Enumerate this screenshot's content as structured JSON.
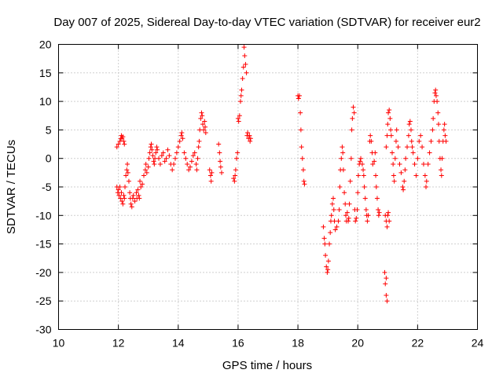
{
  "chart_data": {
    "type": "scatter",
    "title": "Day 007 of 2025, Sidereal Day-to-day VTEC variation (SDTVAR) for receiver eur2",
    "xlabel": "GPS time / hours",
    "ylabel": "SDTVAR / TECUs",
    "xlim": [
      10,
      24
    ],
    "ylim": [
      -30,
      20
    ],
    "xticks": [
      10,
      12,
      14,
      16,
      18,
      20,
      22,
      24
    ],
    "yticks": [
      -30,
      -25,
      -20,
      -15,
      -10,
      -5,
      0,
      5,
      10,
      15,
      20
    ],
    "grid": true,
    "marker": "+",
    "series": [
      {
        "name": "SDTVAR",
        "color": "#ff0000",
        "points": [
          [
            11.95,
            2.0
          ],
          [
            12.0,
            2.5
          ],
          [
            12.05,
            3.0
          ],
          [
            12.08,
            3.5
          ],
          [
            12.1,
            4.0
          ],
          [
            12.12,
            3.5
          ],
          [
            12.15,
            3.8
          ],
          [
            12.18,
            3.0
          ],
          [
            12.2,
            2.5
          ],
          [
            11.95,
            -5.0
          ],
          [
            11.98,
            -6.0
          ],
          [
            12.0,
            -5.5
          ],
          [
            12.02,
            -6.5
          ],
          [
            12.05,
            -5.0
          ],
          [
            12.07,
            -7.0
          ],
          [
            12.1,
            -6.0
          ],
          [
            12.12,
            -7.5
          ],
          [
            12.15,
            -8.0
          ],
          [
            12.18,
            -6.5
          ],
          [
            12.2,
            -7.0
          ],
          [
            12.22,
            -5.0
          ],
          [
            12.25,
            -3.0
          ],
          [
            12.28,
            -2.0
          ],
          [
            12.3,
            -1.0
          ],
          [
            12.32,
            -2.5
          ],
          [
            12.35,
            -4.0
          ],
          [
            12.38,
            -6.0
          ],
          [
            12.4,
            -7.0
          ],
          [
            12.42,
            -8.0
          ],
          [
            12.45,
            -8.5
          ],
          [
            12.48,
            -7.0
          ],
          [
            12.5,
            -6.5
          ],
          [
            12.55,
            -7.5
          ],
          [
            12.6,
            -6.0
          ],
          [
            12.62,
            -7.0
          ],
          [
            12.65,
            -5.5
          ],
          [
            12.68,
            -6.5
          ],
          [
            12.7,
            -7.0
          ],
          [
            12.72,
            -4.0
          ],
          [
            12.75,
            -5.0
          ],
          [
            12.8,
            -4.5
          ],
          [
            12.85,
            -3.0
          ],
          [
            12.9,
            -2.0
          ],
          [
            12.92,
            -1.0
          ],
          [
            12.95,
            -2.5
          ],
          [
            13.0,
            -1.5
          ],
          [
            13.02,
            0.0
          ],
          [
            13.05,
            1.0
          ],
          [
            13.08,
            2.0
          ],
          [
            13.1,
            2.5
          ],
          [
            13.12,
            1.5
          ],
          [
            13.15,
            0.5
          ],
          [
            13.18,
            -0.5
          ],
          [
            13.2,
            -1.0
          ],
          [
            13.22,
            0.0
          ],
          [
            13.25,
            1.0
          ],
          [
            13.28,
            2.0
          ],
          [
            13.3,
            1.5
          ],
          [
            13.35,
            0.0
          ],
          [
            13.4,
            -1.0
          ],
          [
            13.45,
            0.5
          ],
          [
            13.5,
            1.0
          ],
          [
            13.55,
            -0.5
          ],
          [
            13.6,
            0.0
          ],
          [
            13.65,
            1.5
          ],
          [
            13.7,
            0.5
          ],
          [
            13.75,
            -1.0
          ],
          [
            13.8,
            -2.0
          ],
          [
            13.85,
            -1.0
          ],
          [
            13.9,
            0.0
          ],
          [
            13.95,
            1.0
          ],
          [
            14.0,
            2.0
          ],
          [
            14.05,
            3.0
          ],
          [
            14.1,
            4.0
          ],
          [
            14.12,
            4.5
          ],
          [
            14.15,
            3.5
          ],
          [
            14.2,
            1.0
          ],
          [
            14.25,
            0.0
          ],
          [
            14.3,
            -1.0
          ],
          [
            14.35,
            -2.0
          ],
          [
            14.4,
            -1.5
          ],
          [
            14.45,
            -0.5
          ],
          [
            14.5,
            0.5
          ],
          [
            14.55,
            1.0
          ],
          [
            14.6,
            -1.0
          ],
          [
            14.62,
            -2.0
          ],
          [
            14.65,
            0.0
          ],
          [
            14.68,
            2.0
          ],
          [
            14.7,
            3.0
          ],
          [
            14.72,
            5.0
          ],
          [
            14.75,
            7.0
          ],
          [
            14.78,
            8.0
          ],
          [
            14.8,
            7.5
          ],
          [
            14.82,
            6.0
          ],
          [
            14.85,
            5.0
          ],
          [
            14.88,
            6.5
          ],
          [
            14.9,
            5.5
          ],
          [
            14.92,
            4.5
          ],
          [
            15.05,
            -2.0
          ],
          [
            15.08,
            -3.0
          ],
          [
            15.1,
            -4.0
          ],
          [
            15.12,
            -2.5
          ],
          [
            15.35,
            2.5
          ],
          [
            15.38,
            1.0
          ],
          [
            15.4,
            -0.5
          ],
          [
            15.42,
            -1.5
          ],
          [
            15.45,
            -2.5
          ],
          [
            15.85,
            -3.5
          ],
          [
            15.88,
            -4.0
          ],
          [
            15.9,
            -3.0
          ],
          [
            15.92,
            -2.0
          ],
          [
            15.95,
            0.0
          ],
          [
            15.98,
            1.0
          ],
          [
            16.0,
            7.0
          ],
          [
            16.02,
            6.5
          ],
          [
            16.05,
            7.5
          ],
          [
            16.08,
            10.0
          ],
          [
            16.1,
            11.0
          ],
          [
            16.12,
            12.0
          ],
          [
            16.15,
            14.0
          ],
          [
            16.18,
            16.0
          ],
          [
            16.2,
            19.5
          ],
          [
            16.22,
            18.0
          ],
          [
            16.25,
            16.5
          ],
          [
            16.28,
            15.0
          ],
          [
            16.3,
            4.0
          ],
          [
            16.32,
            4.5
          ],
          [
            16.35,
            3.5
          ],
          [
            16.38,
            4.0
          ],
          [
            16.4,
            3.0
          ],
          [
            16.42,
            3.5
          ],
          [
            18.0,
            11.0
          ],
          [
            18.02,
            10.5
          ],
          [
            18.05,
            11.0
          ],
          [
            18.08,
            8.0
          ],
          [
            18.1,
            5.0
          ],
          [
            18.12,
            2.0
          ],
          [
            18.15,
            0.0
          ],
          [
            18.18,
            -2.0
          ],
          [
            18.2,
            -4.0
          ],
          [
            18.22,
            -4.5
          ],
          [
            18.85,
            -12.0
          ],
          [
            18.88,
            -14.0
          ],
          [
            18.9,
            -15.0
          ],
          [
            18.92,
            -17.0
          ],
          [
            18.95,
            -19.0
          ],
          [
            18.98,
            -20.0
          ],
          [
            19.0,
            -19.5
          ],
          [
            19.02,
            -18.0
          ],
          [
            19.05,
            -15.0
          ],
          [
            19.08,
            -13.0
          ],
          [
            19.1,
            -11.0
          ],
          [
            19.12,
            -10.0
          ],
          [
            19.15,
            -8.0
          ],
          [
            19.18,
            -7.0
          ],
          [
            19.2,
            -9.0
          ],
          [
            19.22,
            -11.0
          ],
          [
            19.25,
            -12.5
          ],
          [
            19.3,
            -12.0
          ],
          [
            19.35,
            -11.0
          ],
          [
            19.38,
            -9.0
          ],
          [
            19.4,
            -5.0
          ],
          [
            19.42,
            -2.0
          ],
          [
            19.45,
            0.0
          ],
          [
            19.48,
            2.0
          ],
          [
            19.5,
            1.0
          ],
          [
            19.52,
            -2.0
          ],
          [
            19.55,
            -6.0
          ],
          [
            19.58,
            -8.0
          ],
          [
            19.6,
            -10.0
          ],
          [
            19.62,
            -11.0
          ],
          [
            19.65,
            -9.5
          ],
          [
            19.68,
            -11.0
          ],
          [
            19.7,
            -10.5
          ],
          [
            19.72,
            -8.0
          ],
          [
            19.75,
            -4.0
          ],
          [
            19.78,
            0.0
          ],
          [
            19.8,
            5.0
          ],
          [
            19.82,
            7.0
          ],
          [
            19.85,
            9.0
          ],
          [
            19.88,
            8.0
          ],
          [
            19.9,
            -9.0
          ],
          [
            19.92,
            -11.0
          ],
          [
            19.95,
            -10.5
          ],
          [
            19.98,
            -9.0
          ],
          [
            20.0,
            -6.0
          ],
          [
            20.02,
            -3.0
          ],
          [
            20.05,
            -1.0
          ],
          [
            20.08,
            -0.5
          ],
          [
            20.1,
            0.0
          ],
          [
            20.15,
            -1.0
          ],
          [
            20.18,
            -2.0
          ],
          [
            20.2,
            -3.0
          ],
          [
            20.22,
            -5.0
          ],
          [
            20.25,
            -7.0
          ],
          [
            20.28,
            -9.0
          ],
          [
            20.3,
            -10.0
          ],
          [
            20.32,
            -11.0
          ],
          [
            20.35,
            -10.0
          ],
          [
            20.4,
            3.0
          ],
          [
            20.42,
            4.0
          ],
          [
            20.45,
            3.0
          ],
          [
            20.48,
            1.0
          ],
          [
            20.5,
            -1.0
          ],
          [
            20.55,
            -0.5
          ],
          [
            20.58,
            1.0
          ],
          [
            20.6,
            -3.0
          ],
          [
            20.62,
            -5.0
          ],
          [
            20.65,
            -7.0
          ],
          [
            20.68,
            -9.0
          ],
          [
            20.7,
            -10.0
          ],
          [
            20.72,
            -9.5
          ],
          [
            20.9,
            -20.0
          ],
          [
            20.92,
            -22.0
          ],
          [
            20.95,
            -24.0
          ],
          [
            20.98,
            -25.0
          ],
          [
            20.95,
            -21.0
          ],
          [
            20.92,
            -10.0
          ],
          [
            20.95,
            -11.0
          ],
          [
            20.98,
            -12.0
          ],
          [
            21.0,
            -10.0
          ],
          [
            21.02,
            -9.5
          ],
          [
            21.05,
            -11.0
          ],
          [
            20.95,
            2.0
          ],
          [
            20.98,
            4.0
          ],
          [
            21.0,
            6.0
          ],
          [
            21.02,
            8.0
          ],
          [
            21.05,
            8.5
          ],
          [
            21.08,
            7.0
          ],
          [
            21.1,
            5.0
          ],
          [
            21.12,
            4.0
          ],
          [
            21.15,
            1.0
          ],
          [
            21.18,
            -1.0
          ],
          [
            21.2,
            -3.0
          ],
          [
            21.22,
            -4.0
          ],
          [
            21.25,
            0.0
          ],
          [
            21.28,
            3.0
          ],
          [
            21.3,
            5.0
          ],
          [
            21.35,
            2.0
          ],
          [
            21.4,
            -1.0
          ],
          [
            21.45,
            -2.5
          ],
          [
            21.5,
            -5.0
          ],
          [
            21.52,
            -5.5
          ],
          [
            21.55,
            -4.0
          ],
          [
            21.58,
            -2.0
          ],
          [
            21.6,
            0.0
          ],
          [
            21.65,
            2.0
          ],
          [
            21.7,
            4.0
          ],
          [
            21.72,
            6.0
          ],
          [
            21.75,
            6.5
          ],
          [
            21.78,
            5.0
          ],
          [
            21.8,
            3.0
          ],
          [
            21.82,
            2.0
          ],
          [
            21.85,
            1.0
          ],
          [
            21.9,
            -1.0
          ],
          [
            21.95,
            -3.0
          ],
          [
            22.0,
            0.0
          ],
          [
            22.05,
            3.0
          ],
          [
            22.1,
            4.0
          ],
          [
            22.15,
            2.0
          ],
          [
            22.2,
            -1.0
          ],
          [
            22.25,
            -3.0
          ],
          [
            22.28,
            -5.0
          ],
          [
            22.3,
            -4.0
          ],
          [
            22.35,
            -1.0
          ],
          [
            22.4,
            1.0
          ],
          [
            22.45,
            3.0
          ],
          [
            22.5,
            5.0
          ],
          [
            22.52,
            7.0
          ],
          [
            22.55,
            10.0
          ],
          [
            22.58,
            11.5
          ],
          [
            22.6,
            12.0
          ],
          [
            22.62,
            11.0
          ],
          [
            22.65,
            10.0
          ],
          [
            22.68,
            8.0
          ],
          [
            22.7,
            6.0
          ],
          [
            22.72,
            3.0
          ],
          [
            22.75,
            0.0
          ],
          [
            22.78,
            -2.0
          ],
          [
            22.8,
            -3.0
          ],
          [
            22.82,
            0.0
          ],
          [
            22.85,
            3.0
          ],
          [
            22.88,
            5.0
          ],
          [
            22.9,
            6.0
          ],
          [
            22.92,
            4.0
          ],
          [
            22.95,
            3.0
          ]
        ]
      }
    ]
  }
}
